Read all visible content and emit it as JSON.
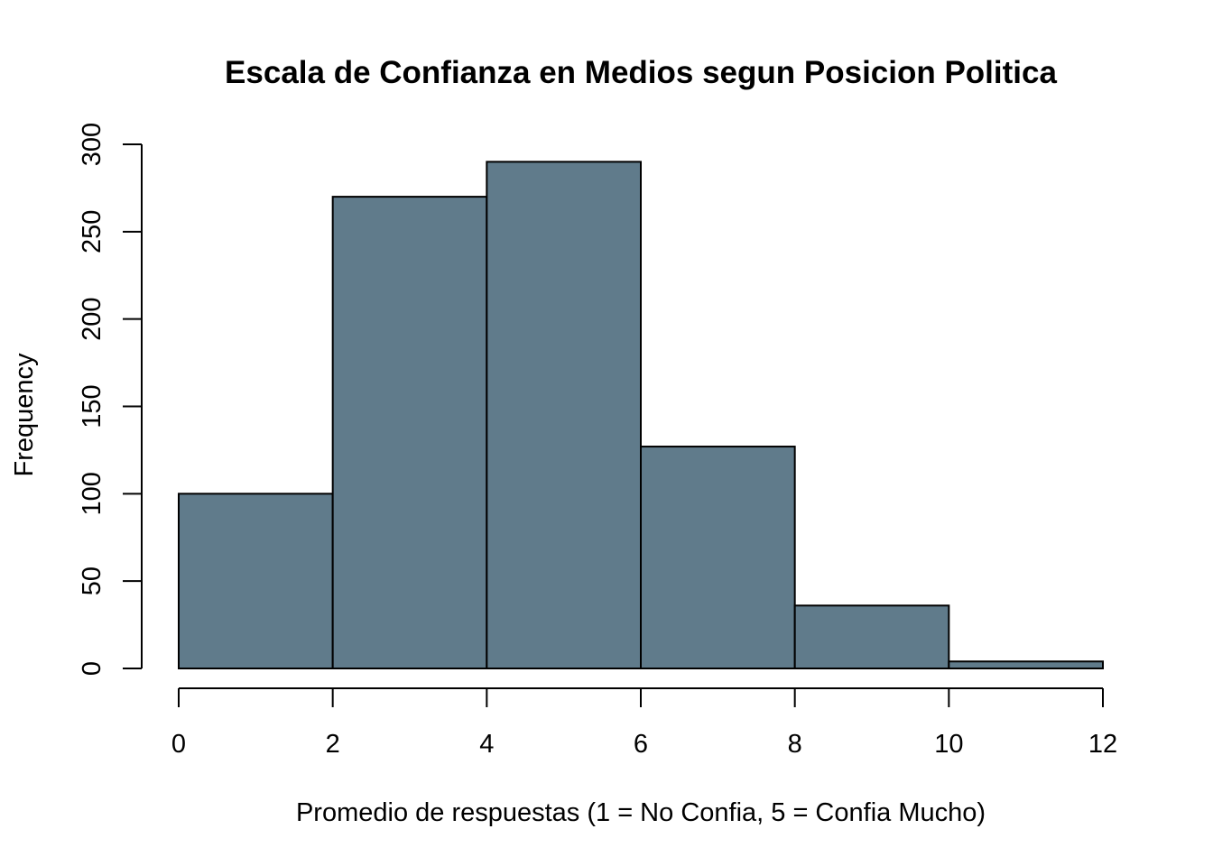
{
  "chart_data": {
    "type": "bar",
    "histogram": true,
    "title": "Escala de Confianza en Medios segun Posicion Politica",
    "xlabel": "Promedio de respuestas (1 = No Confia, 5 = Confia Mucho)",
    "ylabel": "Frequency",
    "bins": [
      {
        "start": 0,
        "end": 2,
        "count": 100
      },
      {
        "start": 2,
        "end": 4,
        "count": 270
      },
      {
        "start": 4,
        "end": 6,
        "count": 290
      },
      {
        "start": 6,
        "end": 8,
        "count": 127
      },
      {
        "start": 8,
        "end": 10,
        "count": 36
      },
      {
        "start": 10,
        "end": 12,
        "count": 4
      }
    ],
    "xlim": [
      0,
      12
    ],
    "ylim": [
      0,
      300
    ],
    "x_ticks": [
      0,
      2,
      4,
      6,
      8,
      10,
      12
    ],
    "y_ticks": [
      0,
      50,
      100,
      150,
      200,
      250,
      300
    ],
    "bar_color": "#607b8b",
    "grid": false,
    "legend": "none"
  }
}
